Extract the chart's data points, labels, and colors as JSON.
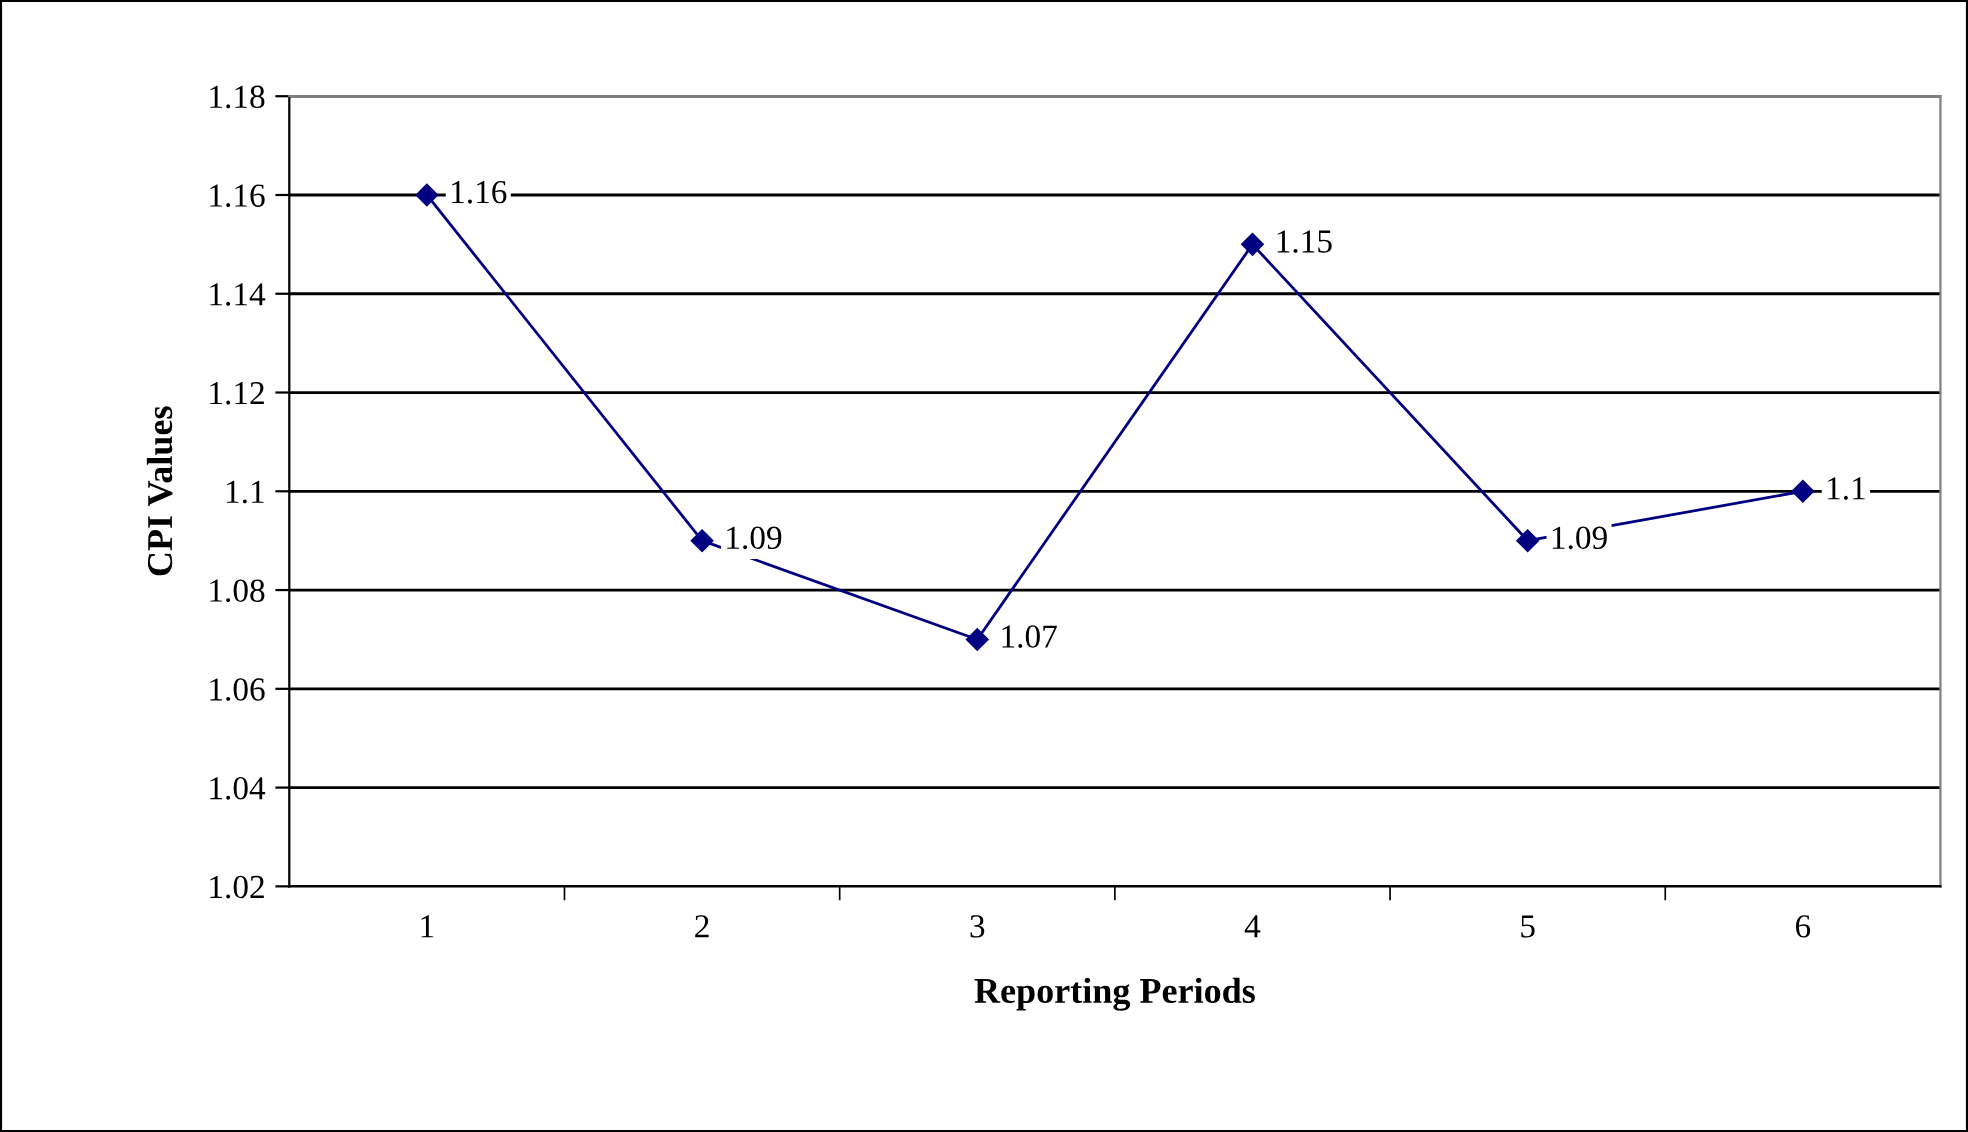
{
  "chart_data": {
    "type": "line",
    "xlabel": "Reporting Periods",
    "ylabel": "CPI Values",
    "categories": [
      "1",
      "2",
      "3",
      "4",
      "5",
      "6"
    ],
    "series": [
      {
        "color": "#000080",
        "values": [
          1.16,
          1.09,
          1.07,
          1.15,
          1.09,
          1.1
        ]
      }
    ],
    "ylim": [
      1.02,
      1.18
    ],
    "yticks": [
      1.02,
      1.04,
      1.06,
      1.08,
      1.1,
      1.12,
      1.14,
      1.16,
      1.18
    ],
    "grid": "y",
    "marker": "diamond",
    "line_style": "solid",
    "data_labels": true
  }
}
